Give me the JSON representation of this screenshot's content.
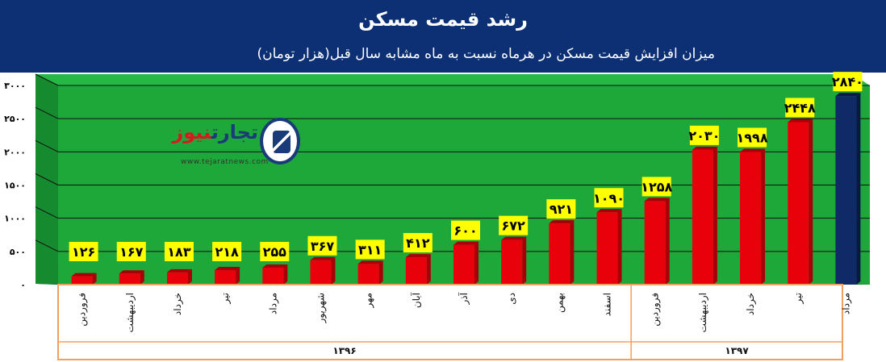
{
  "header": {
    "title": "رشد قیمت مسکن",
    "subtitle": "میزان افزایش قیمت مسکن در هرماه نسبت به ماه مشابه سال قبل(هزار تومان)"
  },
  "logo": {
    "name_part1": "تجارت",
    "name_part2": "نیوز",
    "url": "www.tejaratnews.com"
  },
  "colors": {
    "header_bg": "#0d2f73",
    "plot_bg": "#1fa83a",
    "bar_red": "#e8000a",
    "bar_highlight": "#0f2a66",
    "label_bg": "#ffff00",
    "axis_frame": "#f0a060"
  },
  "chart_data": {
    "type": "bar",
    "title": "رشد قیمت مسکن",
    "categories": [
      "فروردین",
      "اردیبهشت",
      "خرداد",
      "تیر",
      "مرداد",
      "شهریور",
      "مهر",
      "آبان",
      "آذر",
      "دی",
      "بهمن",
      "اسفند",
      "فروردین",
      "اردیبهشت",
      "خرداد",
      "تیر",
      "مرداد"
    ],
    "values": [
      126,
      167,
      183,
      218,
      255,
      367,
      311,
      412,
      600,
      672,
      921,
      1090,
      1258,
      2030,
      1998,
      2448,
      2840
    ],
    "value_labels": [
      "۱۲۶",
      "۱۶۷",
      "۱۸۳",
      "۲۱۸",
      "۲۵۵",
      "۳۶۷",
      "۳۱۱",
      "۴۱۲",
      "۶۰۰",
      "۶۷۲",
      "۹۲۱",
      "۱۰۹۰",
      "۱۲۵۸",
      "۲۰۳۰",
      "۱۹۹۸",
      "۲۴۴۸",
      "۲۸۴۰"
    ],
    "highlight_index": 16,
    "groups": [
      {
        "label": "۱۳۹۶",
        "start": 0,
        "end": 11
      },
      {
        "label": "۱۳۹۷",
        "start": 12,
        "end": 16
      }
    ],
    "ylim": [
      0,
      3000
    ],
    "yticks": [
      0,
      500,
      1000,
      1500,
      2000,
      2500,
      3000
    ],
    "ytick_labels": [
      "۰",
      "۵۰۰",
      "۱۰۰۰",
      "۱۵۰۰",
      "۲۰۰۰",
      "۲۵۰۰",
      "۳۰۰۰"
    ],
    "grid": true,
    "xlabel": "",
    "ylabel": ""
  }
}
